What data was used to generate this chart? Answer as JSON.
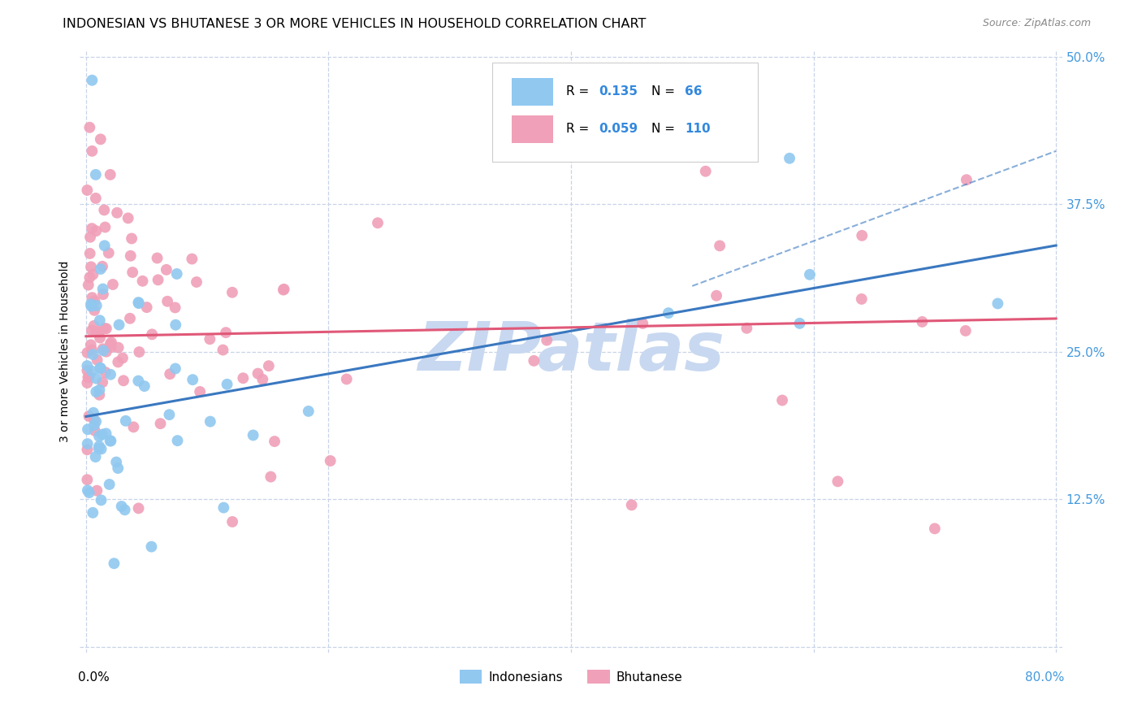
{
  "title": "INDONESIAN VS BHUTANESE 3 OR MORE VEHICLES IN HOUSEHOLD CORRELATION CHART",
  "source": "Source: ZipAtlas.com",
  "ylabel": "3 or more Vehicles in Household",
  "ytick_labels": [
    "",
    "12.5%",
    "25.0%",
    "37.5%",
    "50.0%"
  ],
  "watermark": "ZIPatlas",
  "legend_indonesian_R": "0.135",
  "legend_indonesian_N": "66",
  "legend_bhutanese_R": "0.059",
  "legend_bhutanese_N": "110",
  "color_indonesian": "#90c8f0",
  "color_bhutanese": "#f0a0b8",
  "line_color_indonesian": "#3a78c0",
  "line_color_bhutanese": "#e05878",
  "background_color": "#ffffff",
  "grid_color": "#c8d4e8",
  "title_fontsize": 11.5,
  "axis_label_fontsize": 10,
  "tick_fontsize": 11,
  "watermark_color": "#c8d8f0",
  "watermark_fontsize": 60,
  "source_fontsize": 9,
  "legend_fontsize": 11
}
